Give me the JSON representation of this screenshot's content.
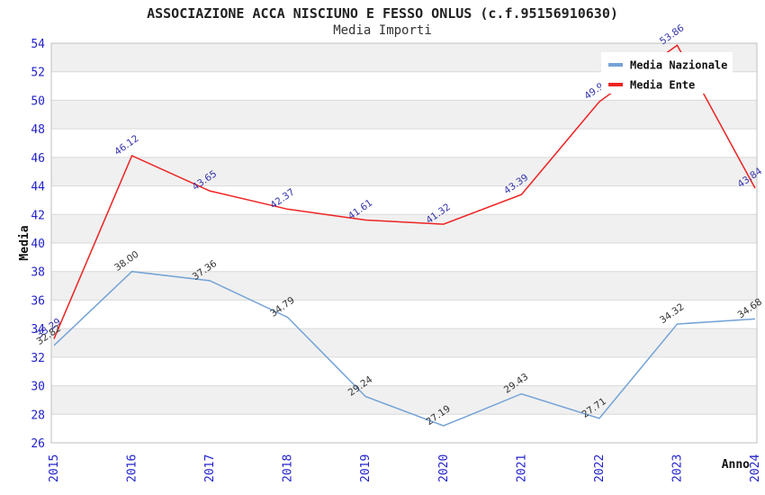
{
  "chart_data": {
    "type": "line",
    "title": "ASSOCIAZIONE ACCA NISCIUNO E FESSO ONLUS (c.f.95156910630)",
    "subtitle": "Media Importi",
    "xlabel": "Anno",
    "ylabel": "Media",
    "ylim": [
      26,
      54
    ],
    "ytick_step": 2,
    "yticks": [
      54,
      52,
      50,
      48,
      46,
      44,
      42,
      40,
      38,
      36,
      34,
      32,
      30,
      28,
      26
    ],
    "categories": [
      "2015",
      "2016",
      "2017",
      "2018",
      "2019",
      "2020",
      "2021",
      "2022",
      "2023",
      "2024"
    ],
    "series": [
      {
        "name": "Media Nazionale",
        "color": "#74A3D6",
        "label_color": "#333333",
        "values": [
          32.82,
          38.0,
          37.36,
          34.79,
          29.24,
          27.19,
          29.43,
          27.71,
          34.32,
          34.68
        ],
        "point_labels": [
          "32.82",
          "38.00",
          "37.36",
          "34.79",
          "29.24",
          "27.19",
          "29.43",
          "27.71",
          "34.32",
          "34.68"
        ]
      },
      {
        "name": "Media Ente",
        "color": "#EE2222",
        "label_color": "#3333AA",
        "values": [
          33.29,
          46.12,
          43.65,
          42.37,
          41.61,
          41.32,
          43.39,
          49.9,
          53.86,
          43.84
        ],
        "point_labels": [
          "33.29",
          "46.12",
          "43.65",
          "42.37",
          "41.61",
          "41.32",
          "43.39",
          "49.9",
          "53.86",
          "43.84"
        ]
      }
    ],
    "legend_position": "top-right",
    "grid": "alternating-horizontal-bands"
  },
  "styles": {
    "background": "#FFFFFF",
    "band_color": "#F0F0F0",
    "grid_line_color": "#D9D9D9",
    "border_color": "#BFBFBF",
    "tick_color": "#2222CC",
    "axis_title_color": "#111111",
    "title_color": "#222222",
    "legend_bg": "#FFFFFF",
    "legend_text_color": "#111111"
  }
}
